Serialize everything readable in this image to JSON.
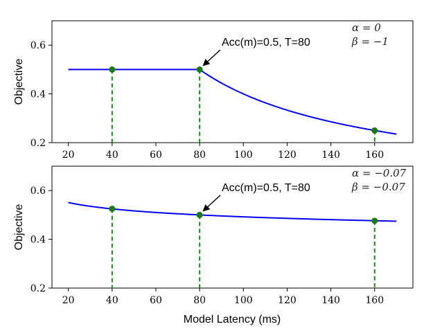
{
  "chart_data": [
    {
      "type": "line",
      "ylabel": "Objective",
      "xlabel": "",
      "xlim": [
        12.5,
        177.5
      ],
      "ylim": [
        0.2,
        0.7
      ],
      "xticks": [
        20,
        40,
        60,
        80,
        100,
        120,
        140,
        160
      ],
      "yticks": [
        0.2,
        0.4,
        0.6
      ],
      "alpha_label": "α = 0",
      "beta_label": "β = −1",
      "alpha": 0,
      "beta": -1,
      "acc": 0.5,
      "T": 80,
      "x_start": 20,
      "x_end": 170,
      "markers": [
        {
          "x": 40,
          "y": 0.5
        },
        {
          "x": 80,
          "y": 0.5
        },
        {
          "x": 160,
          "y": 0.25
        }
      ],
      "annotation": {
        "text": "Acc(m)=0.5, T=80",
        "x": 80,
        "y": 0.5
      }
    },
    {
      "type": "line",
      "ylabel": "Objective",
      "xlabel": "Model Latency (ms)",
      "xlim": [
        12.5,
        177.5
      ],
      "ylim": [
        0.2,
        0.7
      ],
      "xticks": [
        20,
        40,
        60,
        80,
        100,
        120,
        140,
        160
      ],
      "yticks": [
        0.2,
        0.4,
        0.6
      ],
      "alpha_label": "α = −0.07",
      "beta_label": "β = −0.07",
      "alpha": -0.07,
      "beta": -0.07,
      "acc": 0.5,
      "T": 80,
      "x_start": 20,
      "x_end": 170,
      "markers": [
        {
          "x": 40,
          "y": 0.525
        },
        {
          "x": 80,
          "y": 0.5
        },
        {
          "x": 160,
          "y": 0.476
        }
      ],
      "annotation": {
        "text": "Acc(m)=0.5, T=80",
        "x": 80,
        "y": 0.5
      }
    }
  ],
  "colors": {
    "line": "#0000ee",
    "marker": "#1a7a1a",
    "dashed": "#1a8a1a"
  }
}
